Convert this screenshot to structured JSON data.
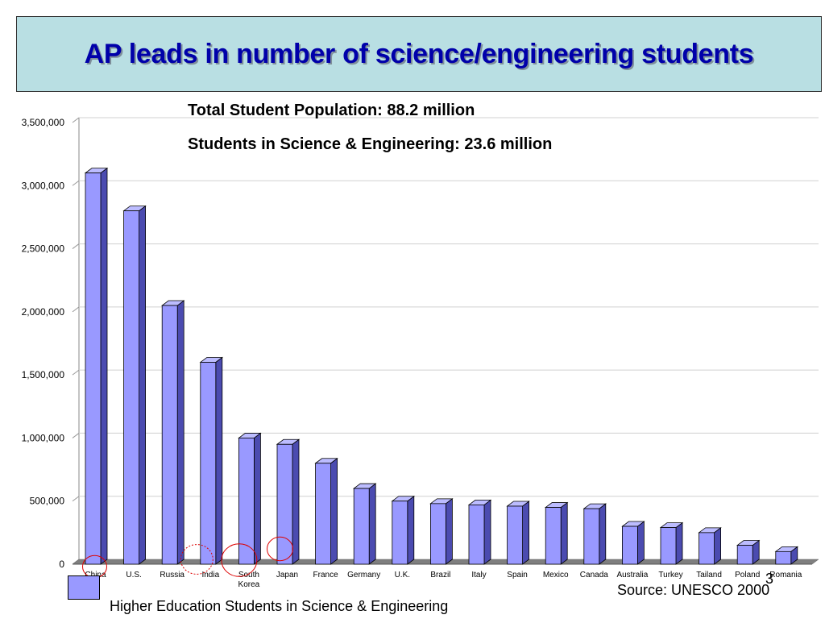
{
  "slide": {
    "title": "AP leads in number of science/engineering students",
    "subtitle_1": "Total Student Population: 88.2 million",
    "subtitle_2": "Students in Science & Engineering: 23.6 million",
    "source": "Source: UNESCO 2000",
    "page_number": "3"
  },
  "colors": {
    "bar_front": "#9999ff",
    "bar_side": "#4b4bb0",
    "bar_top": "#bcbcff",
    "floor": "#7f7f7f",
    "title_bg": "#b9dfe3",
    "title_text": "#0000aa",
    "highlight_circle": "#dd0000"
  },
  "chart_data": {
    "type": "bar",
    "categories": [
      "China",
      "U.S.",
      "Russia",
      "India",
      "South Korea",
      "Japan",
      "France",
      "Germany",
      "U.K.",
      "Brazil",
      "Italy",
      "Spain",
      "Mexico",
      "Canada",
      "Australia",
      "Turkey",
      "Tailand",
      "Poland",
      "Romania"
    ],
    "series": [
      {
        "name": "Higher Education Students in Science & Engineering",
        "values": [
          3100000,
          2800000,
          2050000,
          1600000,
          1000000,
          950000,
          800000,
          600000,
          500000,
          480000,
          470000,
          460000,
          450000,
          440000,
          300000,
          290000,
          250000,
          150000,
          100000
        ]
      }
    ],
    "y_ticks": [
      "0",
      "500,000",
      "1,000,000",
      "1,500,000",
      "2,000,000",
      "2,500,000",
      "3,000,000",
      "3,500,000"
    ],
    "ylim": [
      0,
      3500000
    ],
    "grid": true,
    "legend_position": "bottom-left",
    "highlighted_categories": [
      "China",
      "India",
      "South Korea",
      "Japan"
    ]
  }
}
